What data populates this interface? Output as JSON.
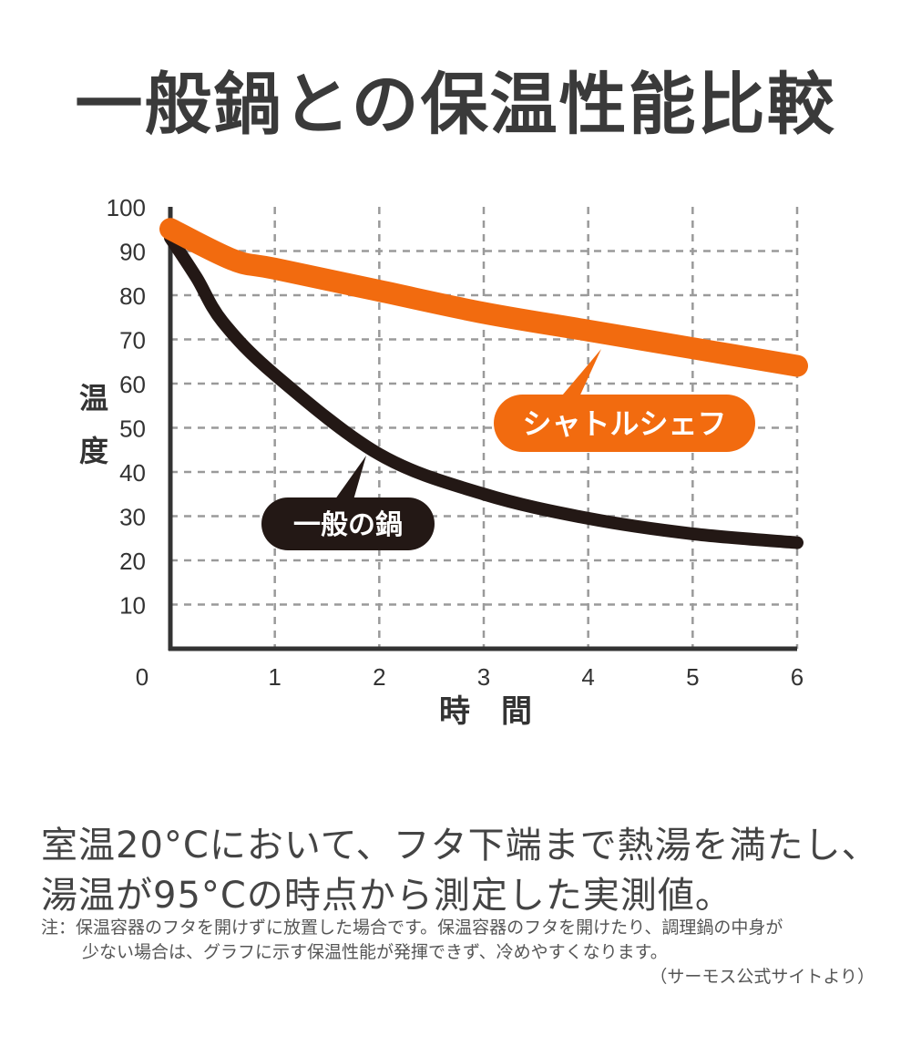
{
  "title": "一般鍋との保温性能比較",
  "chart_data": {
    "type": "line",
    "title": "",
    "xlabel": "時　間",
    "ylabel": "温度",
    "xlim": [
      0,
      6
    ],
    "ylim": [
      0,
      100
    ],
    "x_ticks": [
      "0",
      "1",
      "2",
      "3",
      "4",
      "5",
      "6"
    ],
    "y_ticks": [
      "10",
      "20",
      "30",
      "40",
      "50",
      "60",
      "70",
      "80",
      "90",
      "100"
    ],
    "grid": true,
    "series": [
      {
        "name": "シャトルシェフ",
        "color": "#f26b0f",
        "x": [
          0,
          0.6,
          1,
          2,
          3,
          4,
          5,
          6
        ],
        "y": [
          95,
          88,
          86,
          81,
          76,
          72,
          68,
          64
        ]
      },
      {
        "name": "一般の鍋",
        "color": "#231815",
        "x": [
          0,
          0.25,
          0.5,
          1,
          2,
          3,
          4,
          5,
          6
        ],
        "y": [
          93,
          84,
          74,
          62,
          44,
          35,
          29.5,
          26,
          24
        ]
      }
    ]
  },
  "description": {
    "line1": "室温20°Cにおいて、フタ下端まで熱湯を満たし、",
    "line2": "湯温が95°Cの時点から測定した実測値。"
  },
  "note": {
    "line1": "注：保温容器のフタを開けずに放置した場合です。保温容器のフタを開けたり、調理鍋の中身が",
    "line2": "少ない場合は、グラフに示す保温性能が発揮できず、冷めやすくなります。",
    "source": "（サーモス公式サイトより）"
  }
}
